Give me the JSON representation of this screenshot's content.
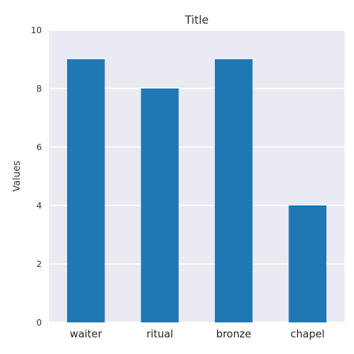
{
  "chart_data": {
    "type": "bar",
    "title": "Title",
    "xlabel": "",
    "ylabel": "Values",
    "categories": [
      "waiter",
      "ritual",
      "bronze",
      "chapel"
    ],
    "values": [
      9,
      8,
      9,
      4
    ],
    "ylim": [
      0,
      10
    ],
    "yticks": [
      0,
      2,
      4,
      6,
      8,
      10
    ],
    "grid": true,
    "bar_color": "#1f77b4",
    "plot_background": "#eaeaf2"
  }
}
